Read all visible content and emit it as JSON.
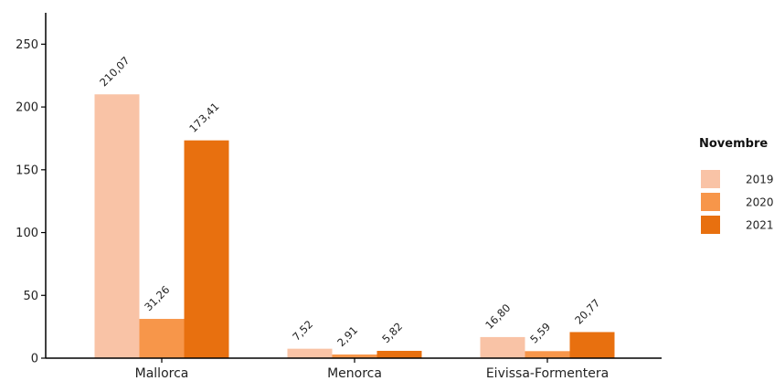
{
  "chart_data": {
    "type": "bar",
    "categories": [
      "Mallorca",
      "Menorca",
      "Eivissa-Formentera"
    ],
    "series": [
      {
        "name": "2019",
        "values": [
          210.07,
          7.52,
          16.8
        ],
        "labels": [
          "210,07",
          "7,52",
          "16,80"
        ],
        "color": "#f9c3a6"
      },
      {
        "name": "2020",
        "values": [
          31.26,
          2.91,
          5.59
        ],
        "labels": [
          "31,26",
          "2,91",
          "5,59"
        ],
        "color": "#f7964a"
      },
      {
        "name": "2021",
        "values": [
          173.41,
          5.82,
          20.77
        ],
        "labels": [
          "173,41",
          "5,82",
          "20,77"
        ],
        "color": "#e8700f"
      }
    ],
    "title": "",
    "xlabel": "",
    "ylabel": "",
    "ylim": [
      0,
      275
    ],
    "yticks": [
      0,
      50,
      100,
      150,
      200,
      250
    ],
    "grid": false,
    "legend": {
      "title": "Novembre",
      "position": "right"
    }
  }
}
